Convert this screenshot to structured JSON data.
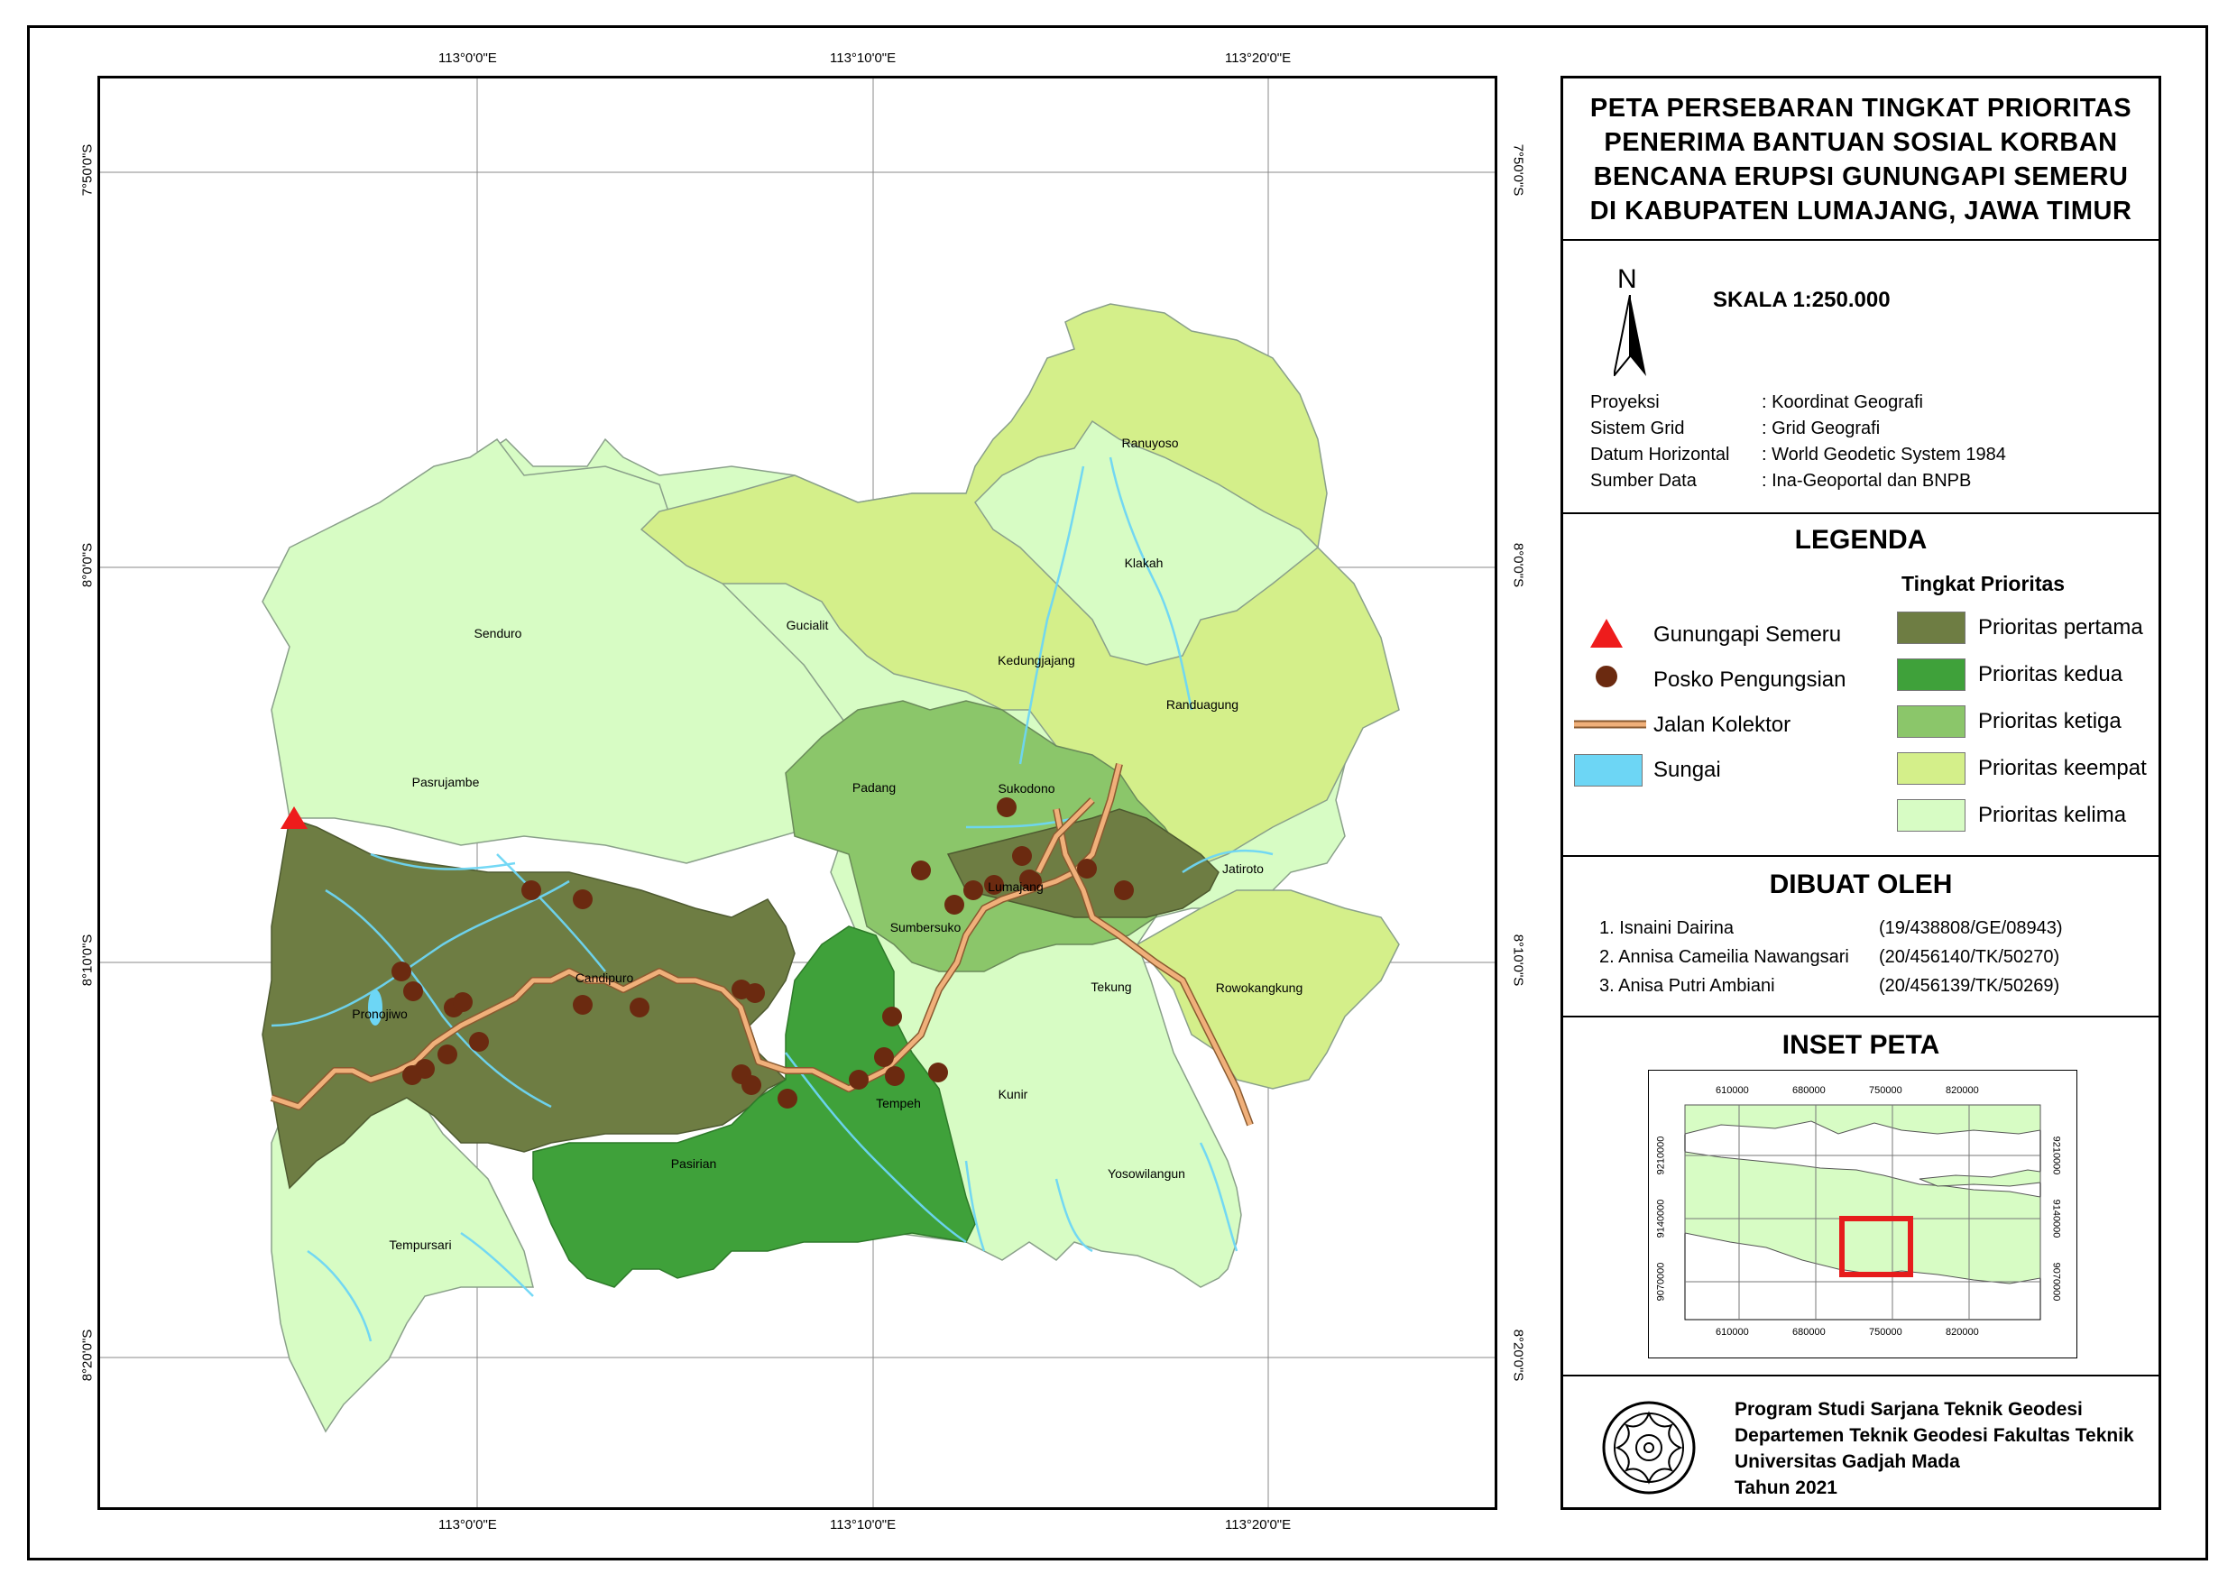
{
  "map": {
    "top_labels": [
      "113°0'0\"E",
      "113°10'0\"E",
      "113°20'0\"E"
    ],
    "bottom_labels": [
      "113°0'0\"E",
      "113°10'0\"E",
      "113°20'0\"E"
    ],
    "left_labels": [
      "7°50'0\"S",
      "8°0'0\"S",
      "8°10'0\"S",
      "8°20'0\"S"
    ],
    "right_labels": [
      "7°50'0\"S",
      "8°0'0\"S",
      "8°10'0\"S",
      "8°20'0\"S"
    ],
    "places": {
      "ranuyoso": "Ranuyoso",
      "klakah": "Klakah",
      "gucialit": "Gucialit",
      "senduro": "Senduro",
      "kedungjajang": "Kedungjajang",
      "randuagung": "Randuagung",
      "pasrujambe": "Pasrujambe",
      "padang": "Padang",
      "sukodono": "Sukodono",
      "jatiroto": "Jatiroto",
      "lumajang": "Lumajang",
      "sumbersuko": "Sumbersuko",
      "candipuro": "Candipuro",
      "pronojiwo": "Pronojiwo",
      "tekung": "Tekung",
      "rowokangkung": "Rowokangkung",
      "tempeh": "Tempeh",
      "kunir": "Kunir",
      "pasirian": "Pasirian",
      "yosowilangun": "Yosowilangun",
      "tempursari": "Tempursari"
    },
    "colors": {
      "prioritas_pertama": "#6e7d43",
      "prioritas_kedua": "#3fa13a",
      "prioritas_ketiga": "#8bc66a",
      "prioritas_keempat": "#d4ef8a",
      "prioritas_kelima": "#d7fcc4",
      "sungai": "#6dd6f5",
      "posko": "#6b2a10",
      "volcano": "#ee1c1c",
      "road": "#f0b07a"
    }
  },
  "title": {
    "line1": "PETA PERSEBARAN TINGKAT PRIORITAS",
    "line2": "PENERIMA BANTUAN SOSIAL KORBAN",
    "line3": "BENCANA ERUPSI GUNUNGAPI SEMERU",
    "line4": "DI KABUPATEN LUMAJANG, JAWA TIMUR"
  },
  "scale": {
    "north_letter": "N",
    "scale_text": "SKALA 1:250.000",
    "rows": [
      {
        "label": "Proyeksi",
        "value": ": Koordinat Geografi"
      },
      {
        "label": "Sistem Grid",
        "value": ": Grid Geografi"
      },
      {
        "label": "Datum Horizontal",
        "value": ": World Geodetic System 1984"
      },
      {
        "label": "Sumber Data",
        "value": ": Ina-Geoportal dan BNPB"
      }
    ]
  },
  "legend": {
    "heading": "LEGENDA",
    "subheading": "Tingkat Prioritas",
    "symbols": [
      "Gunungapi Semeru",
      "Posko Pengungsian",
      "Jalan Kolektor",
      "Sungai"
    ],
    "classes": [
      "Prioritas pertama",
      "Prioritas kedua",
      "Prioritas ketiga",
      "Prioritas keempat",
      "Prioritas kelima"
    ]
  },
  "made_by": {
    "heading": "DIBUAT OLEH",
    "authors": [
      {
        "name": "1. Isnaini Dairina",
        "id": "(19/438808/GE/08943)"
      },
      {
        "name": "2. Annisa Cameilia Nawangsari",
        "id": "(20/456140/TK/50270)"
      },
      {
        "name": "3. Anisa Putri Ambiani",
        "id": "(20/456139/TK/50269)"
      }
    ]
  },
  "inset": {
    "heading": "INSET PETA",
    "x_ticks": [
      "610000",
      "680000",
      "750000",
      "820000"
    ],
    "y_ticks": [
      "9210000",
      "9140000",
      "9070000"
    ]
  },
  "footer": {
    "line1": "Program Studi Sarjana Teknik Geodesi",
    "line2": "Departemen Teknik Geodesi Fakultas Teknik",
    "line3": "Universitas Gadjah Mada",
    "line4": "Tahun 2021"
  }
}
